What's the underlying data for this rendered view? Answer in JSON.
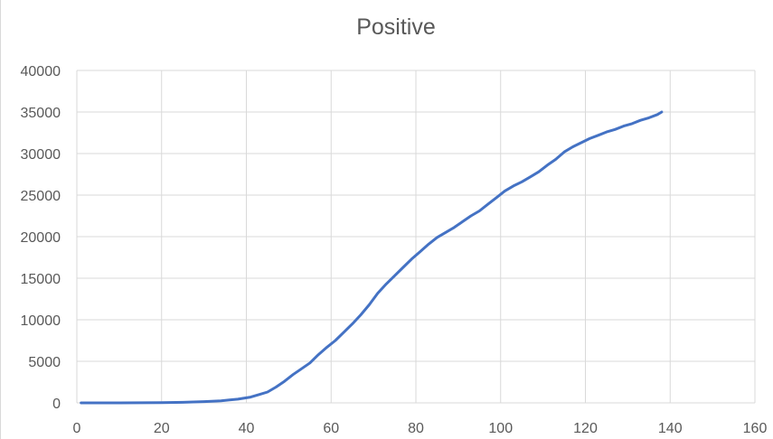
{
  "chart_data": {
    "type": "line",
    "title": "Positive",
    "xlabel": "",
    "ylabel": "",
    "xlim": [
      0,
      160
    ],
    "ylim": [
      0,
      40000
    ],
    "x_ticks": [
      0,
      20,
      40,
      60,
      80,
      100,
      120,
      140,
      160
    ],
    "y_ticks": [
      0,
      5000,
      10000,
      15000,
      20000,
      25000,
      30000,
      35000,
      40000
    ],
    "grid": true,
    "legend": "none",
    "series": [
      {
        "color": "#4472c4",
        "points": [
          [
            1,
            0
          ],
          [
            10,
            5
          ],
          [
            20,
            30
          ],
          [
            25,
            60
          ],
          [
            30,
            150
          ],
          [
            34,
            250
          ],
          [
            38,
            450
          ],
          [
            41,
            700
          ],
          [
            43,
            1000
          ],
          [
            45,
            1300
          ],
          [
            47,
            1900
          ],
          [
            49,
            2600
          ],
          [
            51,
            3400
          ],
          [
            53,
            4100
          ],
          [
            55,
            4800
          ],
          [
            57,
            5800
          ],
          [
            59,
            6700
          ],
          [
            61,
            7500
          ],
          [
            63,
            8500
          ],
          [
            65,
            9500
          ],
          [
            67,
            10600
          ],
          [
            69,
            11800
          ],
          [
            71,
            13200
          ],
          [
            73,
            14300
          ],
          [
            75,
            15300
          ],
          [
            77,
            16300
          ],
          [
            79,
            17300
          ],
          [
            81,
            18200
          ],
          [
            83,
            19100
          ],
          [
            85,
            19900
          ],
          [
            87,
            20500
          ],
          [
            89,
            21100
          ],
          [
            91,
            21800
          ],
          [
            93,
            22500
          ],
          [
            95,
            23100
          ],
          [
            97,
            23900
          ],
          [
            99,
            24700
          ],
          [
            101,
            25500
          ],
          [
            103,
            26100
          ],
          [
            105,
            26600
          ],
          [
            107,
            27200
          ],
          [
            109,
            27800
          ],
          [
            111,
            28600
          ],
          [
            113,
            29300
          ],
          [
            115,
            30200
          ],
          [
            117,
            30800
          ],
          [
            119,
            31300
          ],
          [
            121,
            31800
          ],
          [
            123,
            32200
          ],
          [
            125,
            32600
          ],
          [
            127,
            32900
          ],
          [
            129,
            33300
          ],
          [
            131,
            33600
          ],
          [
            133,
            34000
          ],
          [
            135,
            34300
          ],
          [
            137,
            34700
          ],
          [
            138,
            35000
          ]
        ]
      }
    ]
  }
}
